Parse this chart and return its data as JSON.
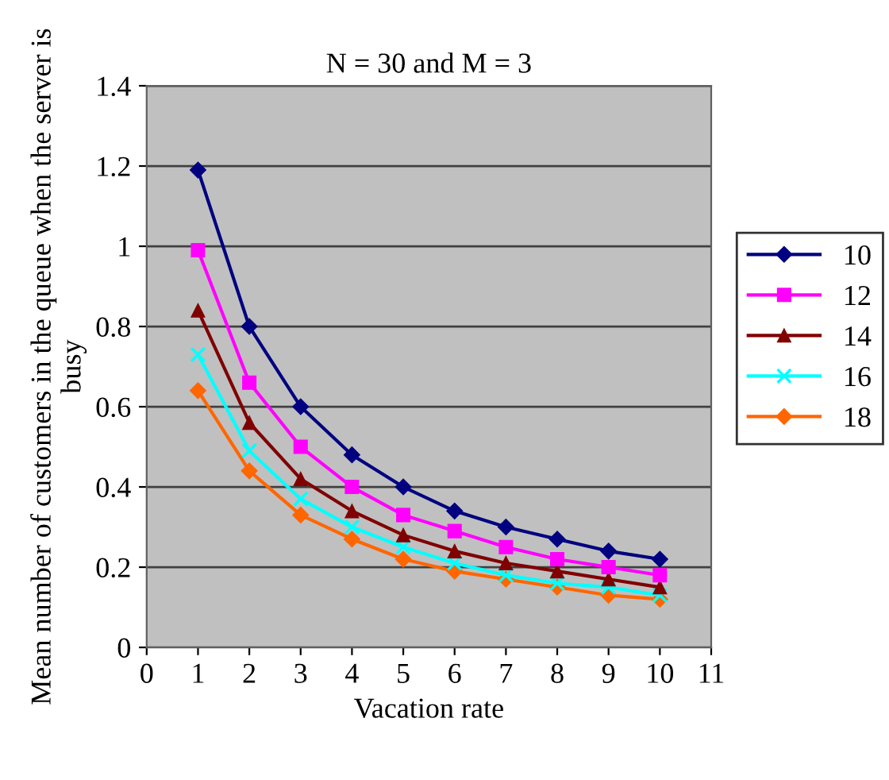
{
  "chart_data": {
    "type": "line",
    "title": "N = 30 and M = 3",
    "xlabel": "Vacation rate",
    "ylabel": "Mean number of customers in the queue when the server is busy",
    "x": [
      1,
      2,
      3,
      4,
      5,
      6,
      7,
      8,
      9,
      10
    ],
    "series": [
      {
        "name": "10",
        "color": "#000080",
        "marker": "diamond",
        "values": [
          1.19,
          0.8,
          0.6,
          0.48,
          0.4,
          0.34,
          0.3,
          0.27,
          0.24,
          0.22
        ]
      },
      {
        "name": "12",
        "color": "#ff00ff",
        "marker": "square",
        "values": [
          0.99,
          0.66,
          0.5,
          0.4,
          0.33,
          0.29,
          0.25,
          0.22,
          0.2,
          0.18
        ]
      },
      {
        "name": "14",
        "color": "#800000",
        "marker": "triangle",
        "values": [
          0.84,
          0.56,
          0.42,
          0.34,
          0.28,
          0.24,
          0.21,
          0.19,
          0.17,
          0.15
        ]
      },
      {
        "name": "16",
        "color": "#00ffff",
        "marker": "cross",
        "values": [
          0.73,
          0.49,
          0.37,
          0.3,
          0.25,
          0.21,
          0.18,
          0.16,
          0.15,
          0.13
        ]
      },
      {
        "name": "18",
        "color": "#ff6600",
        "marker": "diamond",
        "values": [
          0.64,
          0.44,
          0.33,
          0.27,
          0.22,
          0.19,
          0.17,
          0.15,
          0.13,
          0.12
        ]
      }
    ],
    "xlim": [
      0,
      11
    ],
    "xticks": [
      0,
      1,
      2,
      3,
      4,
      5,
      6,
      7,
      8,
      9,
      10,
      11
    ],
    "ylim": [
      0,
      1.4
    ],
    "yticks": [
      0,
      0.2,
      0.4,
      0.6,
      0.8,
      1,
      1.2,
      1.4
    ],
    "grid": "y",
    "legend": "right",
    "line_style": "solid"
  }
}
